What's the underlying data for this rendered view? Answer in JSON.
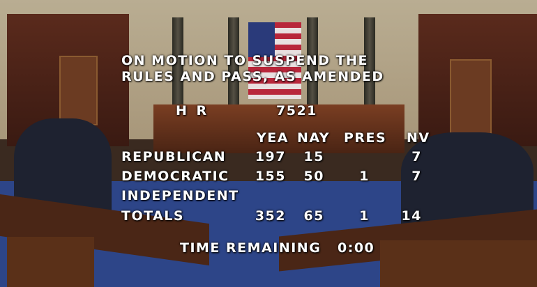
{
  "motion": {
    "line1": "ON MOTION TO SUSPEND THE",
    "line2": "RULES AND PASS, AS AMENDED"
  },
  "bill": {
    "type": "H R",
    "number": "7521"
  },
  "columns": [
    "YEA",
    "NAY",
    "PRES",
    "NV"
  ],
  "rows": [
    {
      "party": "REPUBLICAN",
      "yea": "197",
      "nay": "15",
      "pres": "",
      "nv": "7"
    },
    {
      "party": "DEMOCRATIC",
      "yea": "155",
      "nay": "50",
      "pres": "1",
      "nv": "7"
    },
    {
      "party": "INDEPENDENT",
      "yea": "",
      "nay": "",
      "pres": "",
      "nv": ""
    },
    {
      "party": "TOTALS",
      "yea": "352",
      "nay": "65",
      "pres": "1",
      "nv": "14"
    }
  ],
  "timer": {
    "label": "TIME REMAINING",
    "value": "0:00"
  },
  "colors": {
    "text": "#ffffff",
    "carpet": "#2d4588",
    "wood": "#5a3018"
  }
}
